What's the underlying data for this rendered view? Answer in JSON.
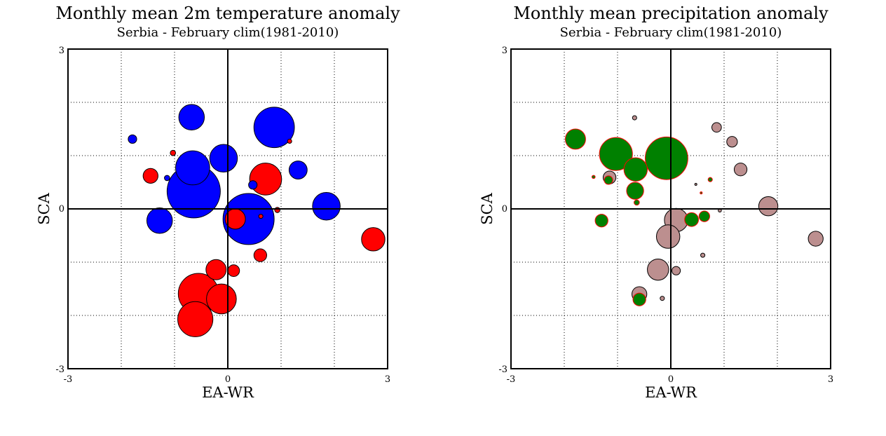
{
  "chart_data": [
    {
      "type": "scatter",
      "title": "Monthly mean 2m temperature anomaly",
      "subtitle": "Serbia - February  clim(1981-2010)",
      "xlabel": "EA-WR",
      "ylabel": "SCA",
      "xlim": [
        -3,
        3
      ],
      "ylim": [
        -3,
        3
      ],
      "x_tick_labels": [
        "-3",
        "0",
        "3"
      ],
      "y_tick_labels": [
        "-3",
        "0",
        "3"
      ],
      "grid": true,
      "marker_size_note": "circle radius proportional to anomaly magnitude",
      "colors": {
        "positive": "#ff0000",
        "negative": "#0000ff",
        "outline": "#000000"
      },
      "points": [
        {
          "x": -1.79,
          "y": 1.31,
          "r": 0.08,
          "sign": "negative"
        },
        {
          "x": -1.03,
          "y": 1.05,
          "r": 0.05,
          "sign": "positive"
        },
        {
          "x": 1.16,
          "y": 1.27,
          "r": 0.04,
          "sign": "positive"
        },
        {
          "x": -1.45,
          "y": 0.62,
          "r": 0.14,
          "sign": "positive"
        },
        {
          "x": -1.14,
          "y": 0.58,
          "r": 0.05,
          "sign": "negative"
        },
        {
          "x": -0.68,
          "y": 1.72,
          "r": 0.24,
          "sign": "negative"
        },
        {
          "x": 0.87,
          "y": 1.53,
          "r": 0.38,
          "sign": "negative"
        },
        {
          "x": -0.08,
          "y": 0.95,
          "r": 0.26,
          "sign": "negative"
        },
        {
          "x": -0.66,
          "y": 0.77,
          "r": 0.32,
          "sign": "negative"
        },
        {
          "x": 1.32,
          "y": 0.73,
          "r": 0.17,
          "sign": "negative"
        },
        {
          "x": 0.47,
          "y": 0.45,
          "r": 0.08,
          "sign": "negative"
        },
        {
          "x": -0.64,
          "y": 0.33,
          "r": 0.5,
          "sign": "negative"
        },
        {
          "x": 0.71,
          "y": 0.56,
          "r": 0.3,
          "sign": "positive"
        },
        {
          "x": 1.85,
          "y": 0.05,
          "r": 0.26,
          "sign": "negative"
        },
        {
          "x": -1.28,
          "y": -0.22,
          "r": 0.24,
          "sign": "negative"
        },
        {
          "x": 0.39,
          "y": -0.19,
          "r": 0.48,
          "sign": "negative"
        },
        {
          "x": 0.14,
          "y": -0.19,
          "r": 0.19,
          "sign": "positive"
        },
        {
          "x": 0.62,
          "y": -0.14,
          "r": 0.04,
          "sign": "positive"
        },
        {
          "x": 0.93,
          "y": -0.02,
          "r": 0.05,
          "sign": "positive"
        },
        {
          "x": 2.73,
          "y": -0.57,
          "r": 0.22,
          "sign": "positive"
        },
        {
          "x": 0.61,
          "y": -0.87,
          "r": 0.12,
          "sign": "positive"
        },
        {
          "x": -0.22,
          "y": -1.14,
          "r": 0.19,
          "sign": "positive"
        },
        {
          "x": 0.11,
          "y": -1.16,
          "r": 0.11,
          "sign": "positive"
        },
        {
          "x": -0.55,
          "y": -1.59,
          "r": 0.38,
          "sign": "positive"
        },
        {
          "x": -0.12,
          "y": -1.69,
          "r": 0.28,
          "sign": "positive"
        },
        {
          "x": -0.61,
          "y": -2.07,
          "r": 0.33,
          "sign": "positive"
        }
      ]
    },
    {
      "type": "scatter",
      "title": "Monthly mean precipitation anomaly",
      "subtitle": "Serbia - February  clim(1981-2010)",
      "xlabel": "EA-WR",
      "ylabel": "SCA",
      "xlim": [
        -3,
        3
      ],
      "ylim": [
        -3,
        3
      ],
      "x_tick_labels": [
        "-3",
        "0",
        "3"
      ],
      "y_tick_labels": [
        "-3",
        "0",
        "3"
      ],
      "grid": true,
      "marker_size_note": "circle radius proportional to anomaly magnitude",
      "colors": {
        "positive": "#008000",
        "negative": "#bc8f8f",
        "positive_outline": "#ff0000",
        "negative_outline": "#000000"
      },
      "points": [
        {
          "x": -1.79,
          "y": 1.31,
          "r": 0.19,
          "sign": "positive"
        },
        {
          "x": -1.03,
          "y": 1.03,
          "r": 0.31,
          "sign": "positive"
        },
        {
          "x": -0.08,
          "y": 0.95,
          "r": 0.4,
          "sign": "positive"
        },
        {
          "x": -0.66,
          "y": 0.74,
          "r": 0.22,
          "sign": "positive"
        },
        {
          "x": -1.15,
          "y": 0.59,
          "r": 0.12,
          "sign": "negative"
        },
        {
          "x": -1.17,
          "y": 0.54,
          "r": 0.08,
          "sign": "positive"
        },
        {
          "x": -1.45,
          "y": 0.6,
          "r": 0.03,
          "sign": "positive"
        },
        {
          "x": -0.67,
          "y": 0.34,
          "r": 0.16,
          "sign": "positive"
        },
        {
          "x": -0.64,
          "y": 0.12,
          "r": 0.05,
          "sign": "positive"
        },
        {
          "x": -0.68,
          "y": 1.71,
          "r": 0.04,
          "sign": "negative"
        },
        {
          "x": 0.86,
          "y": 1.53,
          "r": 0.09,
          "sign": "negative"
        },
        {
          "x": 1.15,
          "y": 1.26,
          "r": 0.1,
          "sign": "negative"
        },
        {
          "x": 1.31,
          "y": 0.74,
          "r": 0.12,
          "sign": "negative"
        },
        {
          "x": 0.74,
          "y": 0.55,
          "r": 0.04,
          "sign": "positive"
        },
        {
          "x": 0.47,
          "y": 0.46,
          "r": 0.02,
          "sign": "negative"
        },
        {
          "x": 0.57,
          "y": 0.3,
          "r": 0.02,
          "sign": "positive"
        },
        {
          "x": 1.83,
          "y": 0.05,
          "r": 0.18,
          "sign": "negative"
        },
        {
          "x": 0.92,
          "y": -0.03,
          "r": 0.03,
          "sign": "negative"
        },
        {
          "x": 0.1,
          "y": -0.21,
          "r": 0.22,
          "sign": "negative"
        },
        {
          "x": 0.39,
          "y": -0.2,
          "r": 0.13,
          "sign": "positive"
        },
        {
          "x": 0.63,
          "y": -0.14,
          "r": 0.1,
          "sign": "positive"
        },
        {
          "x": -1.3,
          "y": -0.22,
          "r": 0.12,
          "sign": "positive"
        },
        {
          "x": -0.05,
          "y": -0.52,
          "r": 0.22,
          "sign": "negative"
        },
        {
          "x": 2.72,
          "y": -0.56,
          "r": 0.14,
          "sign": "negative"
        },
        {
          "x": 0.6,
          "y": -0.87,
          "r": 0.04,
          "sign": "negative"
        },
        {
          "x": -0.24,
          "y": -1.14,
          "r": 0.2,
          "sign": "negative"
        },
        {
          "x": 0.1,
          "y": -1.16,
          "r": 0.08,
          "sign": "negative"
        },
        {
          "x": -0.59,
          "y": -1.6,
          "r": 0.14,
          "sign": "negative"
        },
        {
          "x": -0.59,
          "y": -1.7,
          "r": 0.12,
          "sign": "positive"
        },
        {
          "x": -0.16,
          "y": -1.68,
          "r": 0.04,
          "sign": "negative"
        }
      ]
    }
  ]
}
